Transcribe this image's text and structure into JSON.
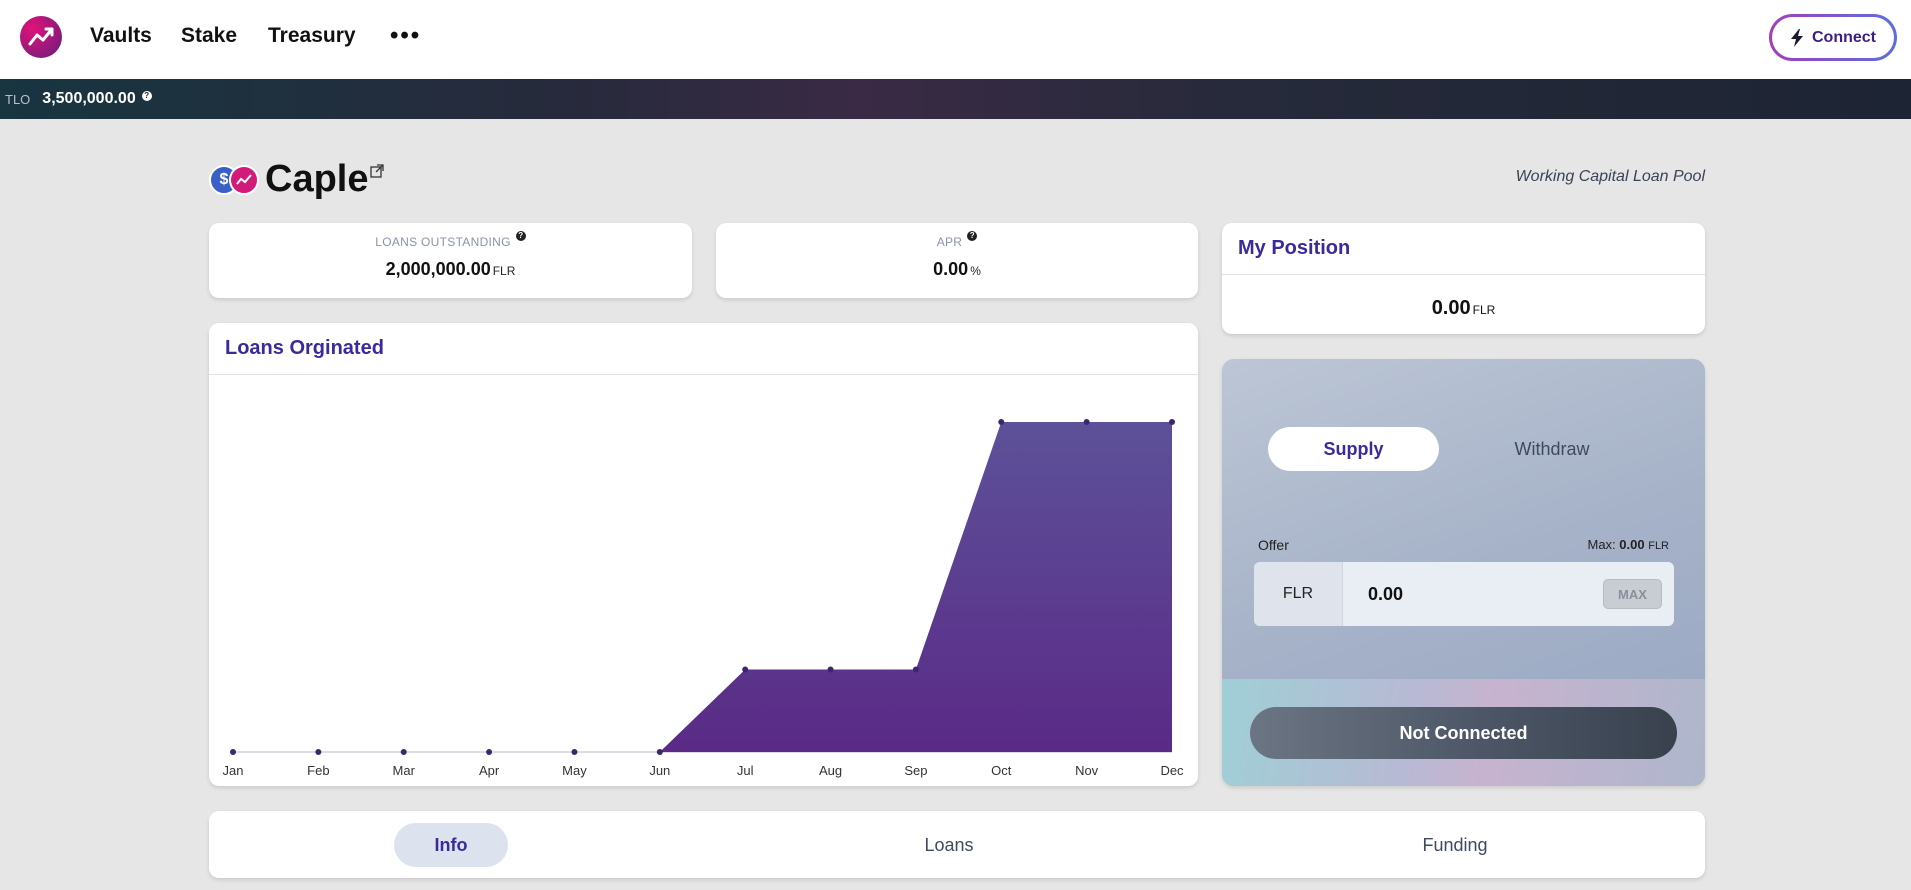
{
  "nav": {
    "logo_icon": "trend-up-logo-icon",
    "links": [
      "Vaults",
      "Stake",
      "Treasury"
    ],
    "more_label": "•••",
    "connect_label": "Connect",
    "connect_icon": "lightning-bolt-icon"
  },
  "statbar": {
    "label": "TLO",
    "value": "3,500,000.00",
    "help": "?"
  },
  "pool": {
    "name": "Caple",
    "type": "Working Capital Loan Pool",
    "coin_blue_symbol": "$"
  },
  "stats": {
    "loans_outstanding": {
      "title": "LOANS OUTSTANDING",
      "value": "2,000,000.00",
      "unit": "FLR",
      "help": "?"
    },
    "apr": {
      "title": "APR",
      "value": "0.00",
      "unit": "%",
      "help": "?"
    }
  },
  "position": {
    "title": "My Position",
    "value": "0.00",
    "unit": "FLR"
  },
  "chart_card": {
    "title": "Loans Orginated"
  },
  "chart_data": {
    "type": "area",
    "categories": [
      "Jan",
      "Feb",
      "Mar",
      "Apr",
      "May",
      "Jun",
      "Jul",
      "Aug",
      "Sep",
      "Oct",
      "Nov",
      "Dec"
    ],
    "values": [
      0,
      0,
      0,
      0,
      0,
      0,
      1,
      1,
      1,
      4,
      4,
      4
    ],
    "colors": {
      "fill_top": "#5d5199",
      "fill_bottom": "#5a2a86",
      "point": "#3d2670",
      "baseline": "#dcdce4"
    }
  },
  "supply": {
    "tabs": [
      "Supply",
      "Withdraw"
    ],
    "offer_label": "Offer",
    "max_prefix": "Max:",
    "max_value": "0.00",
    "max_unit": "FLR",
    "token": "FLR",
    "input_value": "0.00",
    "max_button": "MAX",
    "action_label": "Not Connected"
  },
  "bottom_tabs": [
    "Info",
    "Loans",
    "Funding"
  ]
}
